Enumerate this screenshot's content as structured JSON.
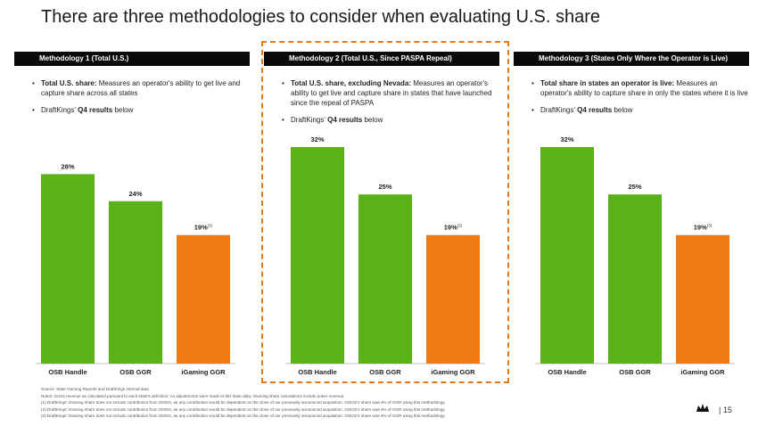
{
  "title": "There are three methodologies to consider when evaluating U.S. share",
  "colors": {
    "green": "#5cb219",
    "orange": "#f07a12",
    "header_bg": "#0a0a0a",
    "highlight": "#e07a1c"
  },
  "columns": [
    {
      "header": "Methodology  1 (Total U.S.)",
      "bullet_lead": "Total U.S. share:",
      "bullet_text": " Measures  an operator's ability to get live and capture share  across all states",
      "q4_prefix": "DraftKings'  ",
      "q4_bold": "Q4 results",
      "q4_suffix": " below"
    },
    {
      "header": "Methodology  2 (Total U.S., Since PASPA Repeal)",
      "bullet_lead": "Total U.S. share, excluding Nevada:",
      "bullet_text": " Measures  an operator's ability to get live and capture share in states that have launched  since the repeal  of PASPA",
      "q4_prefix": "DraftKings'  ",
      "q4_bold": "Q4 results",
      "q4_suffix": " below"
    },
    {
      "header": "Methodology  3 (States Only Where the Operator  is Live)",
      "bullet_lead": "Total share in states an operator is live:",
      "bullet_text": " Measures  an operator's ability to capture share  in only the states where it is live",
      "q4_prefix": "DraftKings'  ",
      "q4_bold": "Q4 results",
      "q4_suffix": " below"
    }
  ],
  "chart_data": [
    {
      "type": "bar",
      "title": "Methodology 1 (Total U.S.)",
      "categories": [
        "OSB Handle",
        "OSB GGR",
        "iGaming GGR"
      ],
      "values": [
        28,
        24,
        19
      ],
      "labels": [
        "28%",
        "24%",
        "19%"
      ],
      "footnotes": [
        "",
        "",
        "(1)"
      ],
      "colors": [
        "#5cb219",
        "#5cb219",
        "#f07a12"
      ],
      "ylim": [
        0,
        32
      ]
    },
    {
      "type": "bar",
      "title": "Methodology 2 (Total U.S., Since PASPA Repeal)",
      "categories": [
        "OSB Handle",
        "OSB GGR",
        "iGaming GGR"
      ],
      "values": [
        32,
        25,
        19
      ],
      "labels": [
        "32%",
        "25%",
        "19%"
      ],
      "footnotes": [
        "",
        "",
        "(2)"
      ],
      "colors": [
        "#5cb219",
        "#5cb219",
        "#f07a12"
      ],
      "ylim": [
        0,
        32
      ]
    },
    {
      "type": "bar",
      "title": "Methodology 3 (States Only Where the Operator is Live)",
      "categories": [
        "OSB Handle",
        "OSB GGR",
        "iGaming GGR"
      ],
      "values": [
        32,
        25,
        19
      ],
      "labels": [
        "32%",
        "25%",
        "19%"
      ],
      "footnotes": [
        "",
        "",
        "(3)"
      ],
      "colors": [
        "#5cb219",
        "#5cb219",
        "#f07a12"
      ],
      "ylim": [
        0,
        32
      ]
    }
  ],
  "footer": {
    "source": "Source: State Gaming Reports and DraftKings internal data",
    "notes": "Notes: Gross revenue as calculated pursuant to each state's definition; no adjustments were made to this state data; iGaming share calculations include poker revenue.",
    "fn1": "(1)    DraftKings' iGaming share does not include contribution from GNOG, as any contribution would be dependent on the close of our previously announced acquisition. GNOG's share was 4% of GGR using this methodology.",
    "fn2": "(2)    DraftKings' iGaming share does not include contribution from GNOG, as any contribution would be dependent on the close of our previously announced acquisition. GNOG's share was 4% of GGR using this methodology.",
    "fn3": "(3)    DraftKings' iGaming share does not include contribution from GNOG, as any contribution would be dependent on the close of our previously announced acquisition. GNOG's share was 6% of GGR using this methodology."
  },
  "page_number": "|   15",
  "logo_icon": "crown-logo-icon"
}
